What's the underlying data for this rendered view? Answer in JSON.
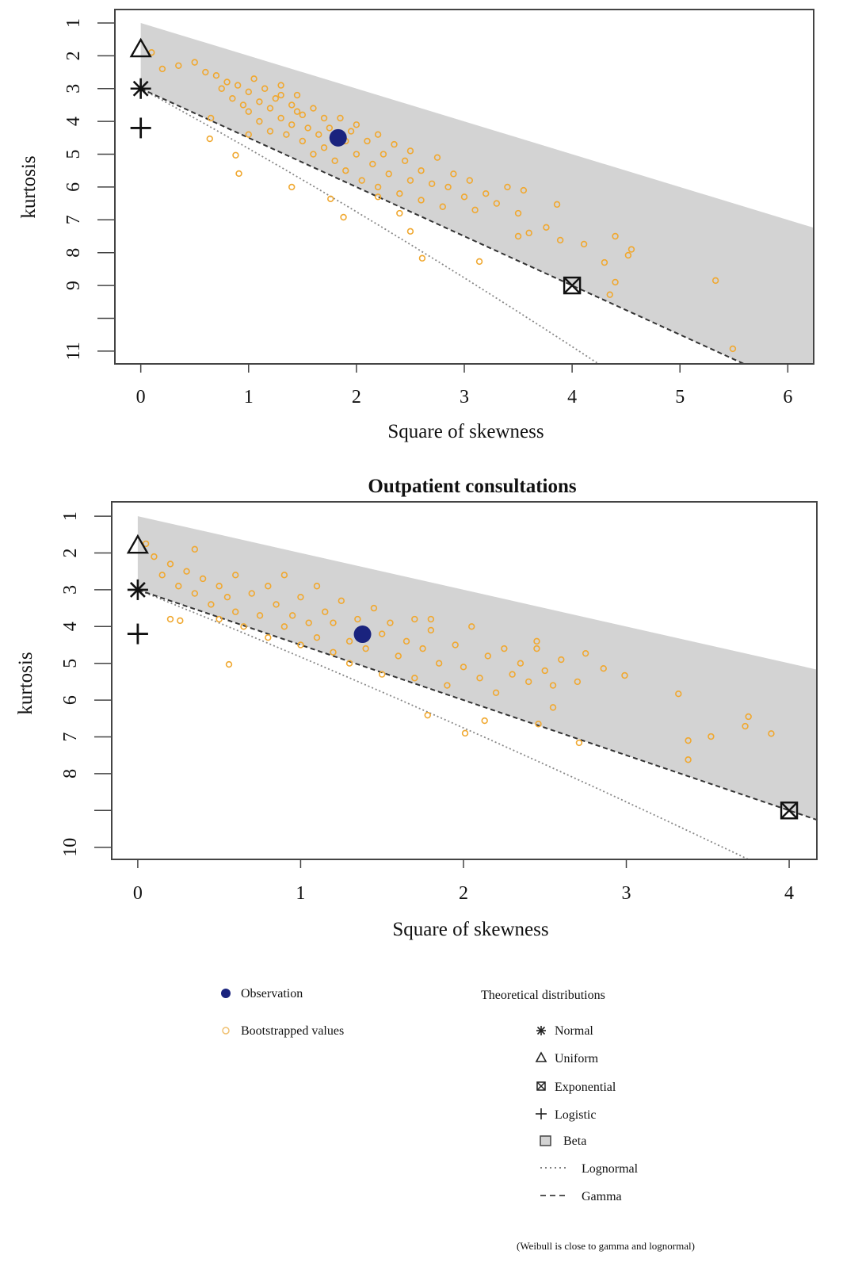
{
  "chart_data": [
    {
      "type": "scatter",
      "title": "",
      "xlabel": "Square of skewness",
      "ylabel": "kurtosis",
      "xlim": [
        -0.24,
        6.24
      ],
      "ylim": [
        11.39,
        0.59
      ],
      "y_inverted": true,
      "xticks": [
        0,
        1,
        2,
        3,
        4,
        5,
        6
      ],
      "xtick_labels": [
        "0",
        "1",
        "2",
        "3",
        "4",
        "5",
        "6"
      ],
      "yticks": [
        1,
        2,
        3,
        4,
        5,
        6,
        7,
        8,
        9,
        10,
        11
      ],
      "ytick_labels": [
        "1",
        "2",
        "3",
        "4",
        "5",
        "6",
        "7",
        "8",
        "9",
        "",
        "11"
      ],
      "observation": [
        1.83,
        4.5
      ],
      "bootstrapped": [
        [
          0.1,
          1.9
        ],
        [
          0.2,
          2.4
        ],
        [
          0.35,
          2.3
        ],
        [
          0.5,
          2.2
        ],
        [
          0.6,
          2.5
        ],
        [
          0.64,
          4.53
        ],
        [
          0.65,
          3.9
        ],
        [
          0.7,
          2.6
        ],
        [
          0.75,
          3.0
        ],
        [
          0.8,
          2.8
        ],
        [
          0.85,
          3.3
        ],
        [
          0.88,
          5.03
        ],
        [
          0.9,
          2.9
        ],
        [
          0.91,
          5.59
        ],
        [
          0.95,
          3.5
        ],
        [
          1.0,
          3.1
        ],
        [
          1.0,
          3.7
        ],
        [
          1.0,
          4.4
        ],
        [
          1.05,
          2.7
        ],
        [
          1.1,
          3.4
        ],
        [
          1.1,
          4.0
        ],
        [
          1.15,
          3.0
        ],
        [
          1.2,
          3.6
        ],
        [
          1.2,
          4.3
        ],
        [
          1.25,
          3.3
        ],
        [
          1.3,
          3.9
        ],
        [
          1.3,
          2.9
        ],
        [
          1.3,
          3.2
        ],
        [
          1.35,
          4.4
        ],
        [
          1.4,
          3.5
        ],
        [
          1.4,
          4.1
        ],
        [
          1.4,
          6.0
        ],
        [
          1.45,
          3.2
        ],
        [
          1.45,
          3.7
        ],
        [
          1.5,
          3.8
        ],
        [
          1.5,
          4.6
        ],
        [
          1.55,
          4.2
        ],
        [
          1.6,
          3.6
        ],
        [
          1.6,
          5.0
        ],
        [
          1.65,
          4.4
        ],
        [
          1.7,
          3.9
        ],
        [
          1.7,
          4.8
        ],
        [
          1.75,
          4.2
        ],
        [
          1.76,
          6.36
        ],
        [
          1.8,
          5.2
        ],
        [
          1.85,
          3.9
        ],
        [
          1.88,
          6.92
        ],
        [
          1.9,
          4.6
        ],
        [
          1.9,
          5.5
        ],
        [
          1.95,
          4.3
        ],
        [
          2.0,
          5.0
        ],
        [
          2.0,
          4.1
        ],
        [
          2.05,
          5.8
        ],
        [
          2.1,
          4.6
        ],
        [
          2.15,
          5.3
        ],
        [
          2.2,
          4.4
        ],
        [
          2.2,
          6.0
        ],
        [
          2.2,
          6.3
        ],
        [
          2.25,
          5.0
        ],
        [
          2.3,
          5.6
        ],
        [
          2.35,
          4.7
        ],
        [
          2.4,
          6.2
        ],
        [
          2.4,
          6.8
        ],
        [
          2.45,
          5.2
        ],
        [
          2.5,
          5.8
        ],
        [
          2.5,
          4.9
        ],
        [
          2.5,
          7.35
        ],
        [
          2.6,
          5.5
        ],
        [
          2.6,
          6.4
        ],
        [
          2.61,
          8.17
        ],
        [
          2.7,
          5.9
        ],
        [
          2.75,
          5.1
        ],
        [
          2.8,
          6.6
        ],
        [
          2.85,
          6.0
        ],
        [
          2.9,
          5.6
        ],
        [
          3.0,
          6.3
        ],
        [
          3.05,
          5.8
        ],
        [
          3.1,
          6.7
        ],
        [
          3.14,
          8.27
        ],
        [
          3.2,
          6.2
        ],
        [
          3.3,
          6.5
        ],
        [
          3.4,
          6.0
        ],
        [
          3.5,
          6.8
        ],
        [
          3.5,
          7.5
        ],
        [
          3.55,
          6.1
        ],
        [
          3.6,
          7.4
        ],
        [
          3.76,
          7.23
        ],
        [
          3.86,
          6.53
        ],
        [
          3.89,
          7.62
        ],
        [
          4.11,
          7.74
        ],
        [
          4.3,
          8.3
        ],
        [
          4.35,
          9.28
        ],
        [
          4.4,
          8.9
        ],
        [
          4.4,
          7.5
        ],
        [
          4.52,
          8.08
        ],
        [
          4.55,
          7.9
        ],
        [
          5.33,
          8.85
        ],
        [
          5.49,
          10.93
        ]
      ]
    },
    {
      "type": "scatter",
      "title": "Outpatient consultations",
      "xlabel": "Square of skewness",
      "ylabel": "kurtosis",
      "xlim": [
        -0.16,
        4.17
      ],
      "ylim": [
        10.33,
        0.61
      ],
      "y_inverted": true,
      "xticks": [
        0,
        1,
        2,
        3,
        4
      ],
      "xtick_labels": [
        "0",
        "1",
        "2",
        "3",
        "4"
      ],
      "yticks": [
        1,
        2,
        3,
        4,
        5,
        6,
        7,
        8,
        9,
        10
      ],
      "ytick_labels": [
        "1",
        "2",
        "3",
        "4",
        "5",
        "6",
        "7",
        "8",
        "",
        "10"
      ],
      "observation": [
        1.38,
        4.21
      ],
      "bootstrapped": [
        [
          0.05,
          1.75
        ],
        [
          0.1,
          2.1
        ],
        [
          0.15,
          2.6
        ],
        [
          0.2,
          2.3
        ],
        [
          0.2,
          3.8
        ],
        [
          0.25,
          2.9
        ],
        [
          0.26,
          3.84
        ],
        [
          0.3,
          2.5
        ],
        [
          0.35,
          1.9
        ],
        [
          0.35,
          3.1
        ],
        [
          0.4,
          2.7
        ],
        [
          0.45,
          3.4
        ],
        [
          0.5,
          2.9
        ],
        [
          0.5,
          3.8
        ],
        [
          0.55,
          3.2
        ],
        [
          0.56,
          5.03
        ],
        [
          0.6,
          2.6
        ],
        [
          0.6,
          3.6
        ],
        [
          0.65,
          4.0
        ],
        [
          0.7,
          3.1
        ],
        [
          0.75,
          3.7
        ],
        [
          0.8,
          2.9
        ],
        [
          0.8,
          4.3
        ],
        [
          0.85,
          3.4
        ],
        [
          0.9,
          4.0
        ],
        [
          0.9,
          2.6
        ],
        [
          0.95,
          3.7
        ],
        [
          1.0,
          4.5
        ],
        [
          1.0,
          3.2
        ],
        [
          1.05,
          3.9
        ],
        [
          1.1,
          4.3
        ],
        [
          1.1,
          2.9
        ],
        [
          1.15,
          3.6
        ],
        [
          1.2,
          4.7
        ],
        [
          1.2,
          3.9
        ],
        [
          1.25,
          3.3
        ],
        [
          1.3,
          4.4
        ],
        [
          1.3,
          5.0
        ],
        [
          1.35,
          3.8
        ],
        [
          1.4,
          4.6
        ],
        [
          1.45,
          3.5
        ],
        [
          1.5,
          4.2
        ],
        [
          1.5,
          5.3
        ],
        [
          1.55,
          3.9
        ],
        [
          1.6,
          4.8
        ],
        [
          1.65,
          4.4
        ],
        [
          1.7,
          3.8
        ],
        [
          1.7,
          5.4
        ],
        [
          1.75,
          4.6
        ],
        [
          1.78,
          6.41
        ],
        [
          1.8,
          4.1
        ],
        [
          1.8,
          3.8
        ],
        [
          1.85,
          5.0
        ],
        [
          1.9,
          5.6
        ],
        [
          1.95,
          4.5
        ],
        [
          2.0,
          5.1
        ],
        [
          2.01,
          6.9
        ],
        [
          2.05,
          4.0
        ],
        [
          2.1,
          5.4
        ],
        [
          2.13,
          6.56
        ],
        [
          2.15,
          4.8
        ],
        [
          2.2,
          5.8
        ],
        [
          2.25,
          4.6
        ],
        [
          2.3,
          5.3
        ],
        [
          2.35,
          5.0
        ],
        [
          2.4,
          5.5
        ],
        [
          2.45,
          4.4
        ],
        [
          2.45,
          4.6
        ],
        [
          2.46,
          6.65
        ],
        [
          2.5,
          5.2
        ],
        [
          2.55,
          5.6
        ],
        [
          2.55,
          6.2
        ],
        [
          2.6,
          4.9
        ],
        [
          2.7,
          5.5
        ],
        [
          2.71,
          7.16
        ],
        [
          2.75,
          4.73
        ],
        [
          2.86,
          5.14
        ],
        [
          2.99,
          5.33
        ],
        [
          3.32,
          5.83
        ],
        [
          3.38,
          7.1
        ],
        [
          3.38,
          7.62
        ],
        [
          3.52,
          6.99
        ],
        [
          3.73,
          6.71
        ],
        [
          3.75,
          6.45
        ],
        [
          3.89,
          6.91
        ]
      ]
    }
  ],
  "theoretical": {
    "normal": [
      0,
      3
    ],
    "uniform": [
      0,
      1.8
    ],
    "exponential": [
      4,
      9
    ],
    "logistic": [
      0,
      4.2
    ]
  },
  "colors": {
    "observation": "#1a237e",
    "bootstrapped": "#f0a830",
    "beta_region": "#d3d3d3"
  },
  "legend": {
    "observation": "Observation",
    "bootstrapped": "Bootstrapped values",
    "theoretical_title": "Theoretical distributions",
    "normal": "Normal",
    "uniform": "Uniform",
    "exponential": "Exponential",
    "logistic": "Logistic",
    "beta": "Beta",
    "lognormal": "Lognormal",
    "gamma": "Gamma",
    "note": "(Weibull is close to gamma and lognormal)"
  }
}
